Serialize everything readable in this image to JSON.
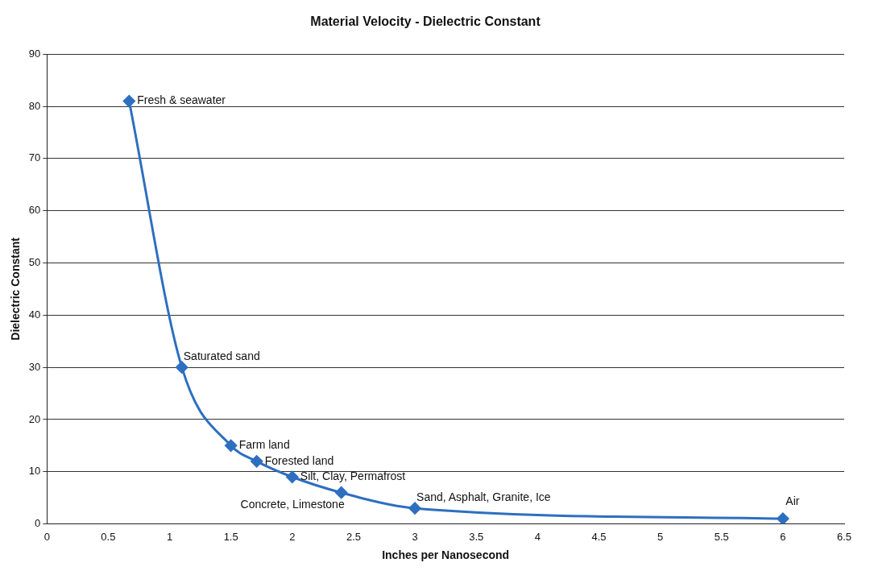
{
  "chart_data": {
    "type": "line",
    "title": "Material Velocity - Dielectric Constant",
    "xlabel": "Inches per Nanosecond",
    "ylabel": "Dielectric Constant",
    "x": [
      0.67,
      1.1,
      1.5,
      1.71,
      2.0,
      2.4,
      3.0,
      6.0
    ],
    "series": [
      {
        "color": "#2e6fc0",
        "values": [
          81,
          30,
          15,
          12,
          9,
          6,
          3,
          1
        ]
      }
    ],
    "xlim": [
      0,
      6.5
    ],
    "xticks": [
      0,
      0.5,
      1,
      1.5,
      2,
      2.5,
      3,
      3.5,
      4,
      4.5,
      5,
      5.5,
      6,
      6.5
    ],
    "ylim": [
      0,
      90
    ],
    "yticks": [
      0,
      10,
      20,
      30,
      40,
      50,
      60,
      70,
      80,
      90
    ],
    "grid": "y",
    "marker": "diamond",
    "line_style": "solid",
    "legend": false,
    "annotations": [
      {
        "text": "Fresh & seawater",
        "x": 0.67,
        "y": 81
      },
      {
        "text": "Saturated sand",
        "x": 1.1,
        "y": 30
      },
      {
        "text": "Farm land",
        "x": 1.5,
        "y": 15
      },
      {
        "text": "Forested land",
        "x": 1.71,
        "y": 12
      },
      {
        "text": "Silt, Clay, Permafrost",
        "x": 2.0,
        "y": 9
      },
      {
        "text": "Concrete, Limestone",
        "x": 2.4,
        "y": 6
      },
      {
        "text": "Sand, Asphalt, Granite, Ice",
        "x": 3.0,
        "y": 3
      },
      {
        "text": "Air",
        "x": 6.0,
        "y": 1
      }
    ]
  }
}
